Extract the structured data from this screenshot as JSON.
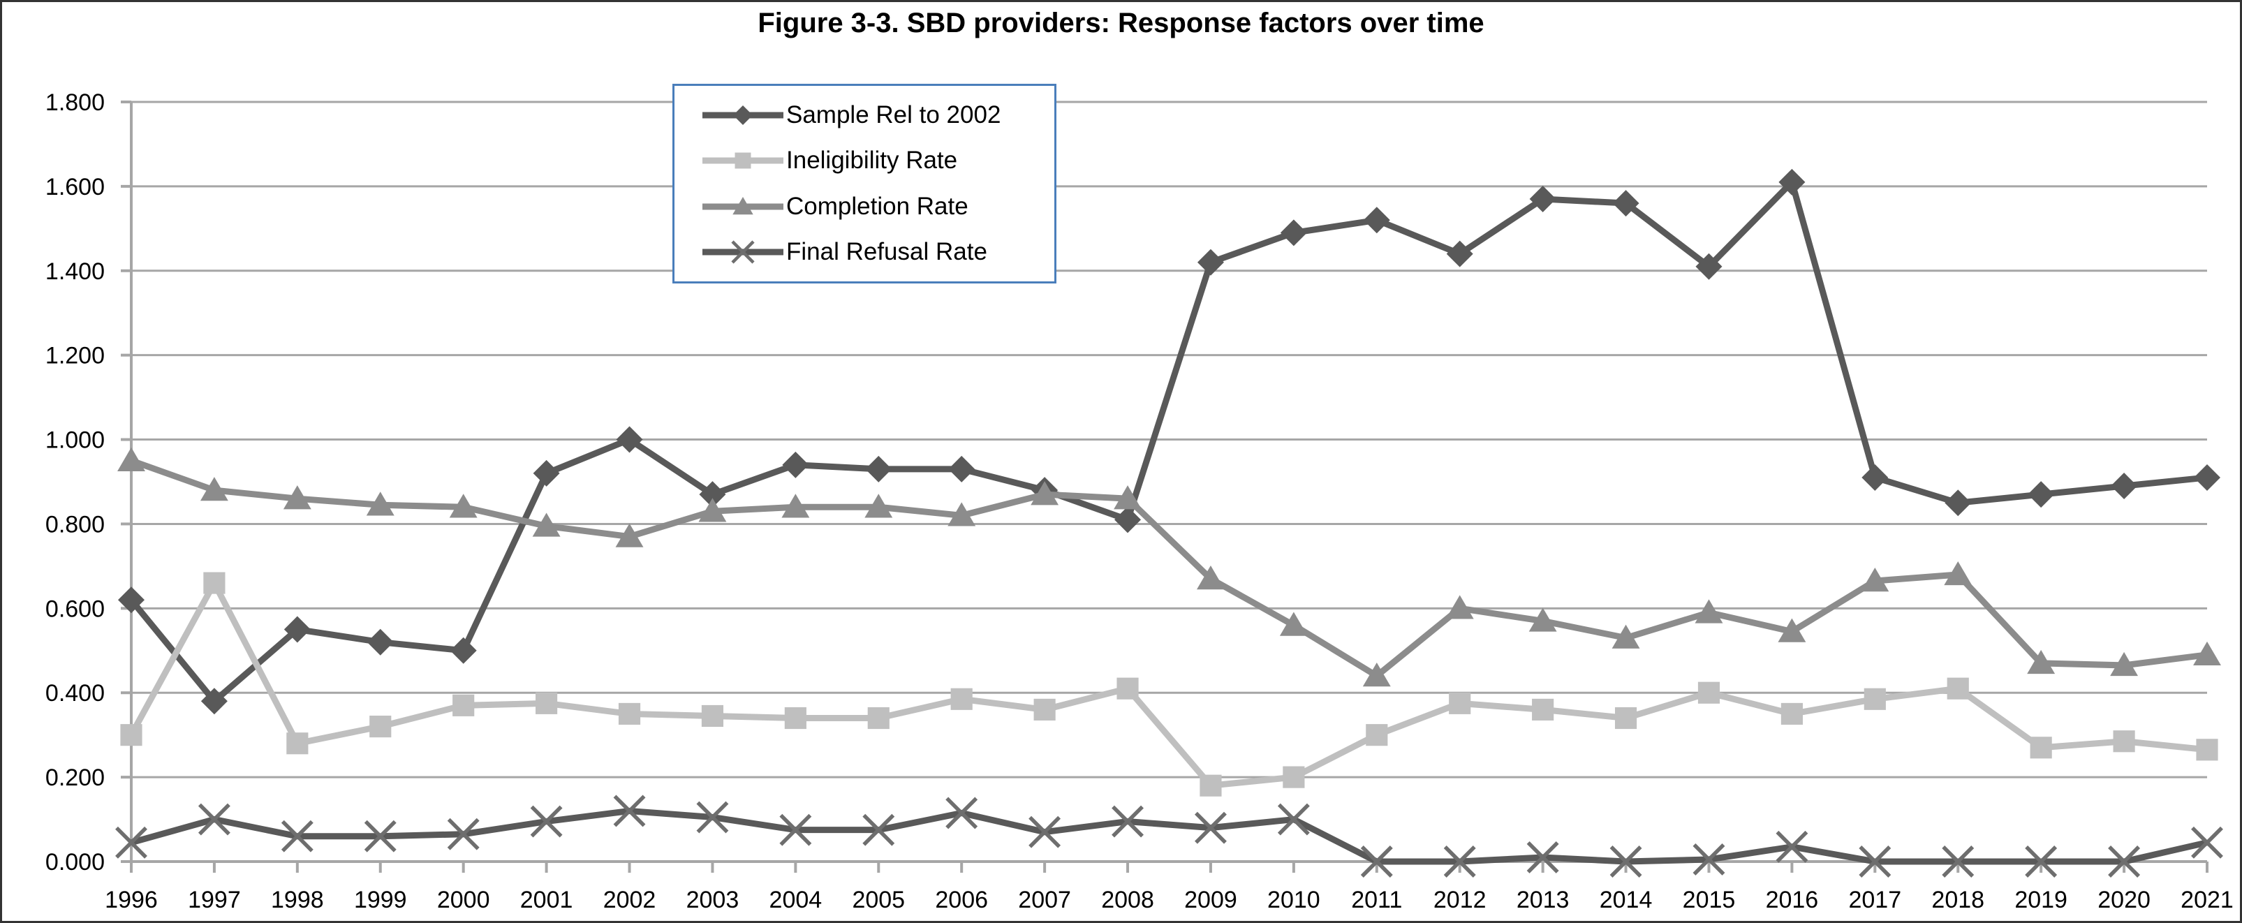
{
  "chart_data": {
    "type": "line",
    "title": "Figure 3-3. SBD providers: Response factors over time",
    "xlabel": "",
    "ylabel": "",
    "ylim": [
      0.0,
      1.8
    ],
    "ytick_step": 0.2,
    "grid": true,
    "legend_position": "top-left-inside",
    "categories": [
      "1996",
      "1997",
      "1998",
      "1999",
      "2000",
      "2001",
      "2002",
      "2003",
      "2004",
      "2005",
      "2006",
      "2007",
      "2008",
      "2009",
      "2010",
      "2011",
      "2012",
      "2013",
      "2014",
      "2015",
      "2016",
      "2017",
      "2018",
      "2019",
      "2020",
      "2021"
    ],
    "ytick_labels": [
      "0.000",
      "0.200",
      "0.400",
      "0.600",
      "0.800",
      "1.000",
      "1.200",
      "1.400",
      "1.600",
      "1.800"
    ],
    "series": [
      {
        "name": "Sample Rel to 2002",
        "marker": "diamond",
        "color": "#595959",
        "values": [
          0.62,
          0.38,
          0.55,
          0.52,
          0.5,
          0.92,
          1.0,
          0.87,
          0.94,
          0.93,
          0.93,
          0.88,
          0.81,
          1.42,
          1.49,
          1.52,
          1.44,
          1.57,
          1.56,
          1.41,
          1.61,
          0.91,
          0.85,
          0.87,
          0.89,
          0.91
        ]
      },
      {
        "name": "Ineligibility Rate",
        "marker": "square",
        "color": "#bfbfbf",
        "values": [
          0.3,
          0.66,
          0.28,
          0.32,
          0.37,
          0.375,
          0.35,
          0.345,
          0.34,
          0.34,
          0.385,
          0.36,
          0.41,
          0.18,
          0.2,
          0.3,
          0.375,
          0.36,
          0.34,
          0.4,
          0.35,
          0.385,
          0.41,
          0.27,
          0.285,
          0.265
        ]
      },
      {
        "name": "Completion Rate",
        "marker": "triangle",
        "color": "#8c8c8c",
        "values": [
          0.95,
          0.88,
          0.86,
          0.845,
          0.84,
          0.795,
          0.77,
          0.83,
          0.84,
          0.84,
          0.82,
          0.87,
          0.86,
          0.67,
          0.56,
          0.44,
          0.6,
          0.57,
          0.53,
          0.59,
          0.545,
          0.665,
          0.68,
          0.47,
          0.465,
          0.49
        ]
      },
      {
        "name": "Final Refusal Rate",
        "marker": "x",
        "color": "#595959",
        "marker_color": "#6e6e6e",
        "values": [
          0.045,
          0.1,
          0.06,
          0.06,
          0.065,
          0.095,
          0.12,
          0.105,
          0.075,
          0.075,
          0.115,
          0.07,
          0.095,
          0.08,
          0.1,
          0.0,
          0.0,
          0.01,
          0.0,
          0.005,
          0.035,
          0.0,
          0.0,
          0.0,
          0.0,
          0.045
        ]
      }
    ],
    "axis_color": "#a6a6a6",
    "gridline_color": "#a6a6a6",
    "legend_border_color": "#4a7ebb",
    "text_color": "#000000"
  }
}
